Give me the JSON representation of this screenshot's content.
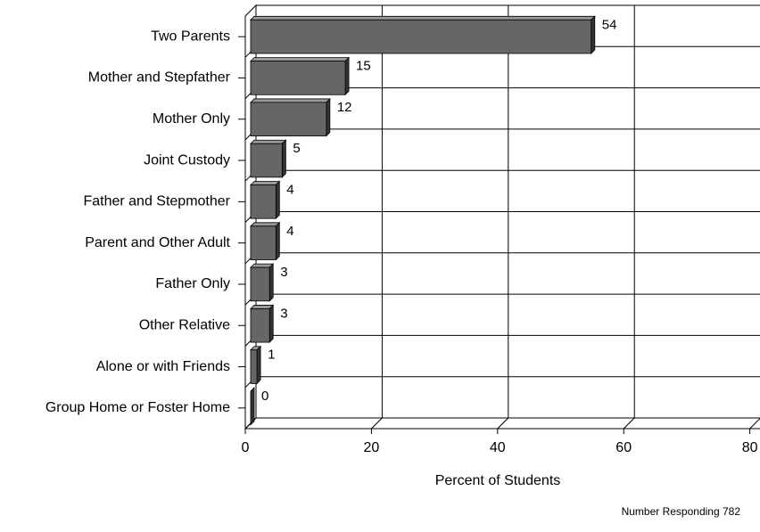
{
  "chart_data": {
    "type": "bar",
    "orientation": "horizontal",
    "categories": [
      "Two Parents",
      "Mother and Stepfather",
      "Mother Only",
      "Joint Custody",
      "Father and Stepmother",
      "Parent and Other Adult",
      "Father Only",
      "Other Relative",
      "Alone or with Friends",
      "Group Home or Foster Home"
    ],
    "values": [
      54,
      15,
      12,
      5,
      4,
      4,
      3,
      3,
      1,
      0
    ],
    "color": "#666666",
    "xlim": [
      0,
      80
    ],
    "xticks": [
      0,
      20,
      40,
      60,
      80
    ],
    "grid": true,
    "xlabel": "Percent of Students",
    "note": "Number Responding 782"
  }
}
